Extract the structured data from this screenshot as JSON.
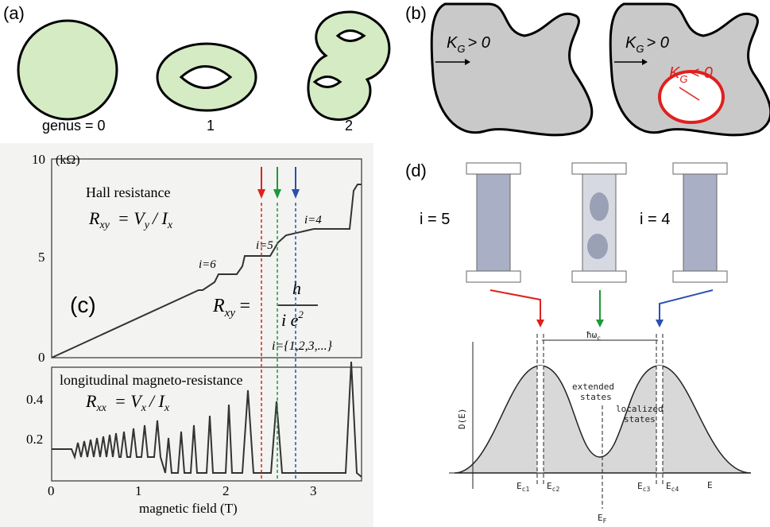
{
  "panel_a": {
    "label": "(a)",
    "genus_labels": [
      "genus = 0",
      "1",
      "2"
    ]
  },
  "panel_b": {
    "label": "(b)",
    "k": "K",
    "g": "G",
    "positive": "> 0",
    "negative": "< 0"
  },
  "panel_c": {
    "label": "(c)",
    "unit": "(kΩ)",
    "upper_ticks": [
      "10",
      "5",
      "0"
    ],
    "lower_ticks": [
      "0.4",
      "0.2"
    ],
    "x_ticks": [
      "0",
      "1",
      "2",
      "3"
    ],
    "x_label": "magnetic field (T)",
    "hall_title": "Hall resistance",
    "r": "R",
    "xy": "xy",
    "hall_eq": "= V",
    "y": "y",
    "over_i": "/ I",
    "x": "x",
    "plateaus": [
      "i=4",
      "i=5",
      "i=6"
    ],
    "h": "h",
    "ie2": "i e",
    "sq": "2",
    "eq": "=",
    "i_set": "i={1,2,3,...}",
    "long_title": "longitudinal magneto-resistance",
    "xx": "xx",
    "long_eq": "= V"
  },
  "panel_d": {
    "label": "(d)",
    "i5": "i = 5",
    "i4": "i = 4",
    "hbar": "ħω",
    "c": "c",
    "extended": [
      "extended",
      "states"
    ],
    "localized": [
      "localized",
      "states"
    ],
    "dos": "D(E)",
    "e_axis": "E",
    "levels": [
      [
        "E",
        "c1"
      ],
      [
        "E",
        "c2"
      ],
      [
        "E",
        "c3"
      ],
      [
        "E",
        "c4"
      ]
    ],
    "ef": [
      "E",
      "F"
    ]
  }
}
